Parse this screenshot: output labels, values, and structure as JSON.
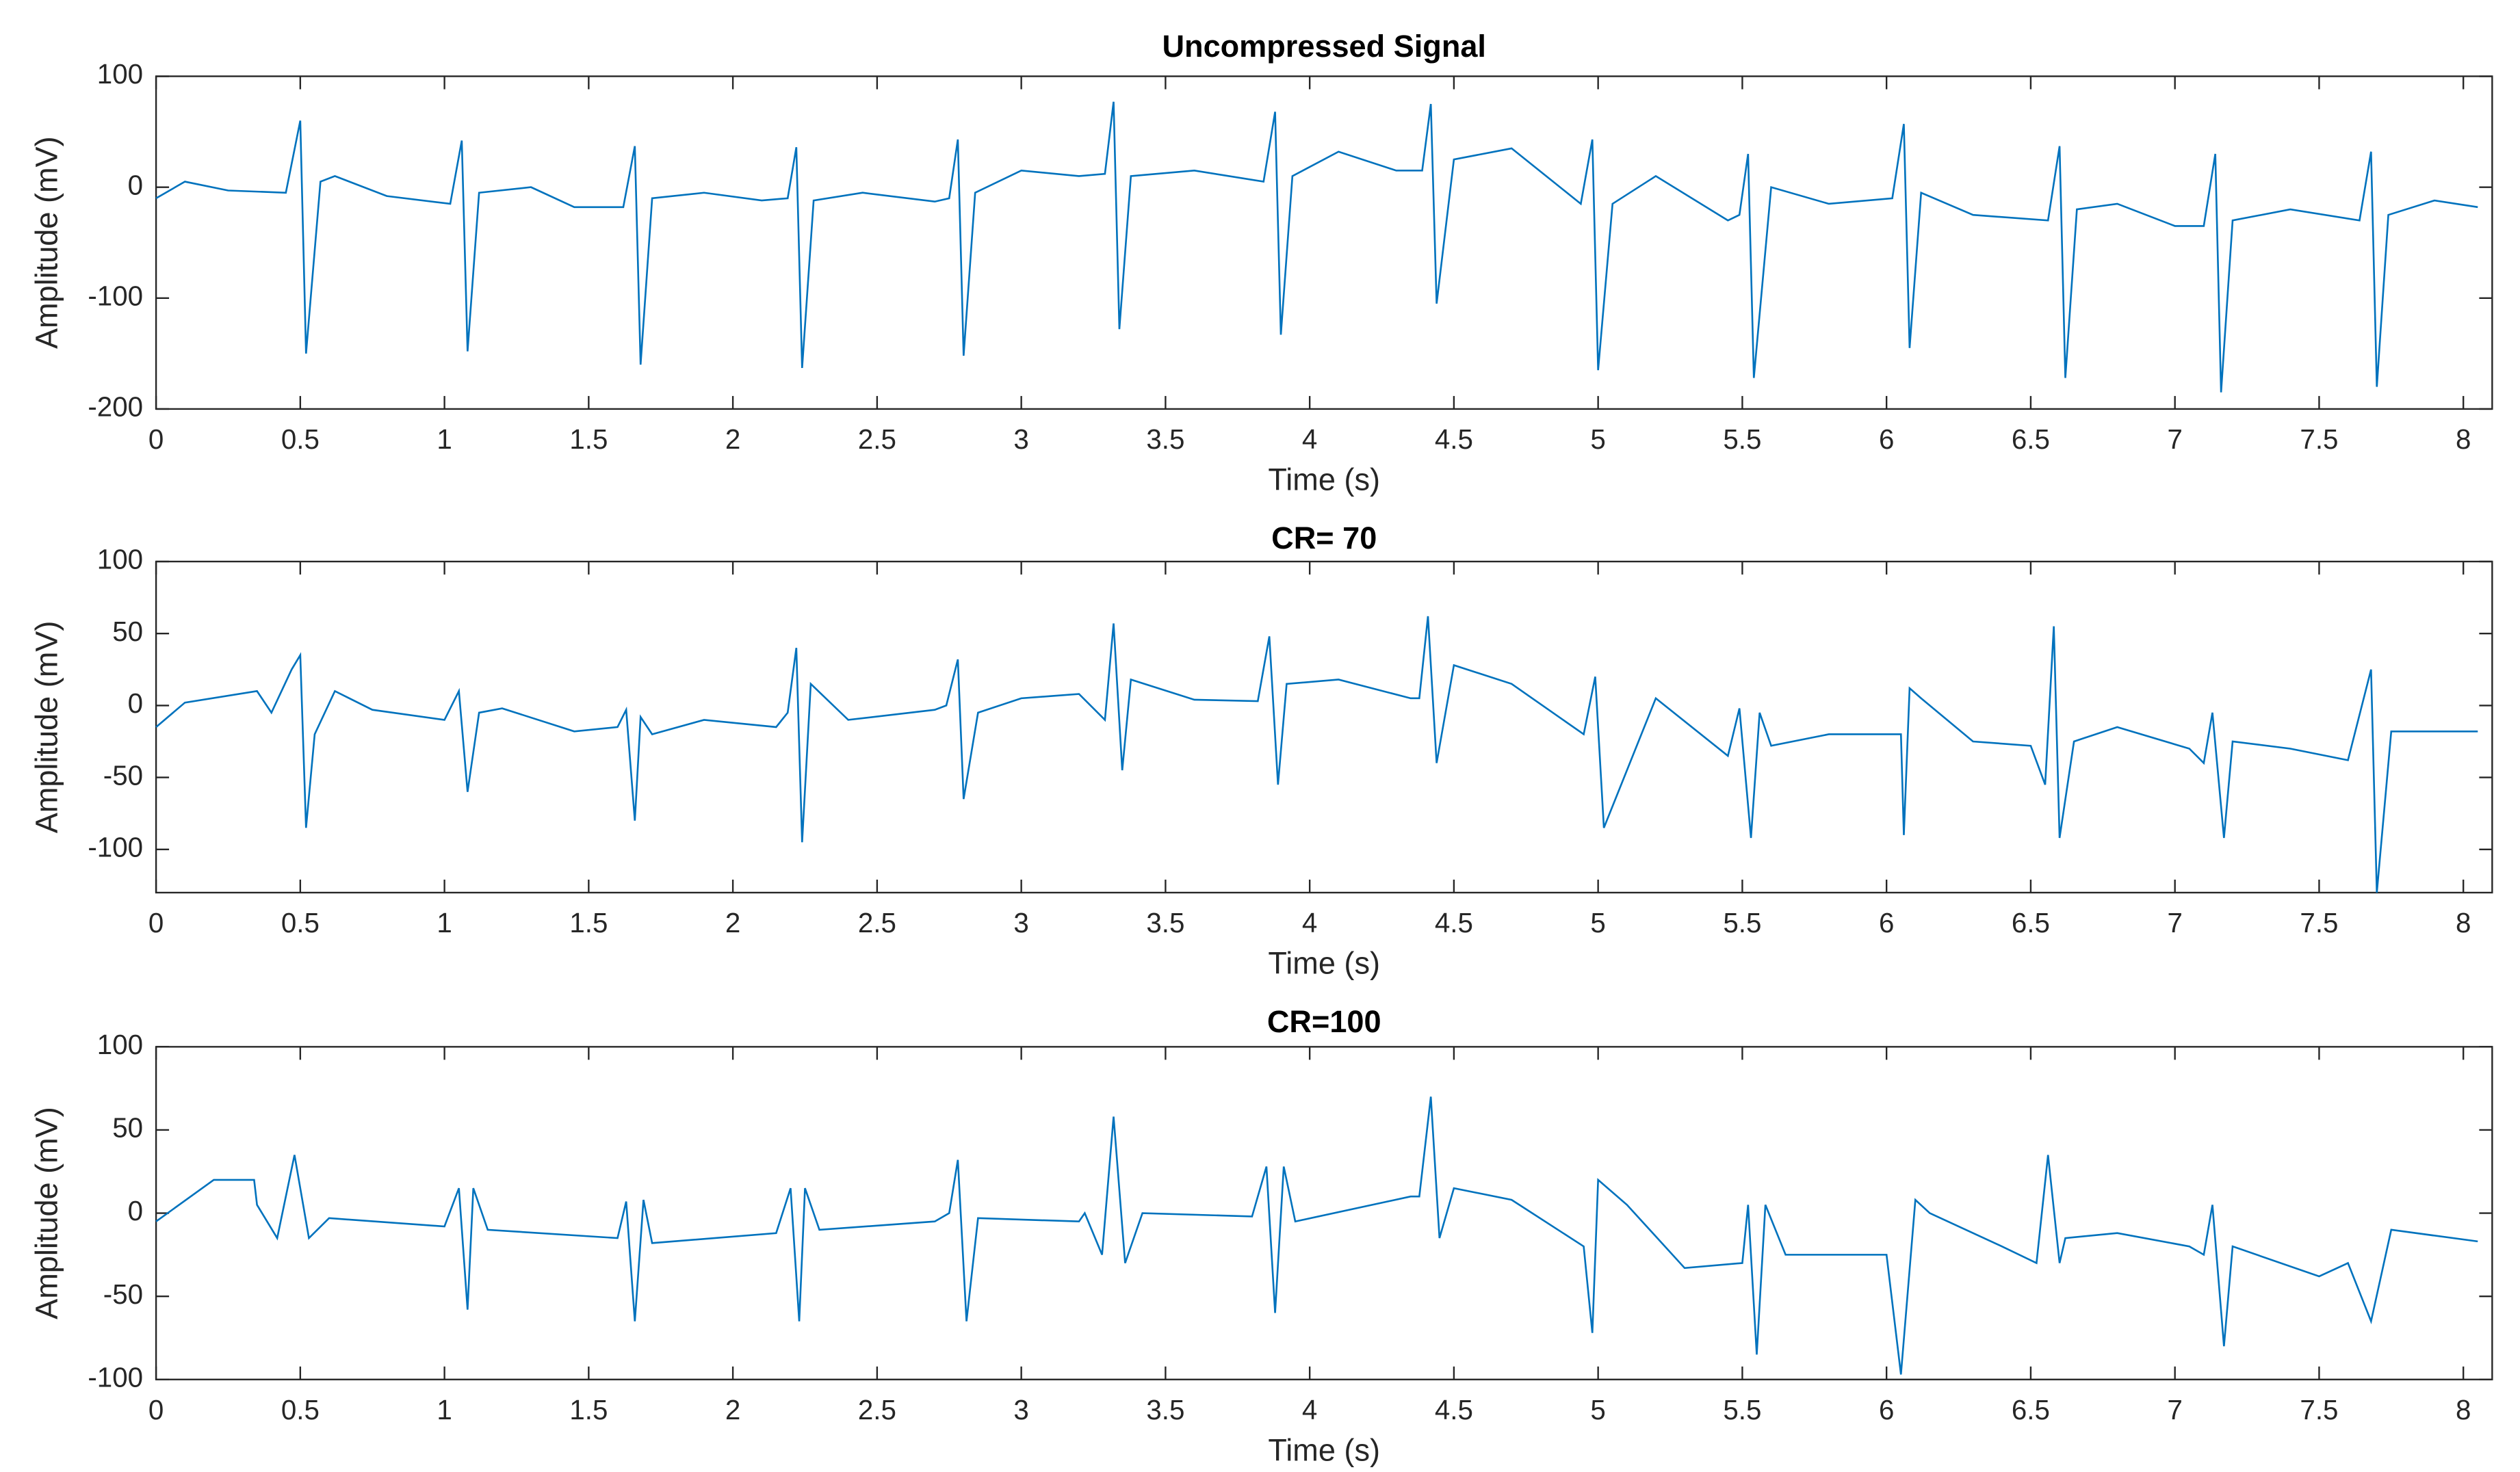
{
  "chart_data": [
    {
      "type": "line",
      "title": "Uncompressed Signal",
      "x_label": "Time (s)",
      "y_label": "Amplitude (mV)",
      "color": "#0072bd",
      "xlim": [
        0,
        8.1
      ],
      "xticks": [
        0,
        0.5,
        1,
        1.5,
        2,
        2.5,
        3,
        3.5,
        4,
        4.5,
        5,
        5.5,
        6,
        6.5,
        7,
        7.5,
        8
      ],
      "ylim": [
        -200,
        100
      ],
      "yticks": [
        -200,
        -100,
        0,
        100
      ],
      "x": [
        0,
        0.1,
        0.25,
        0.45,
        0.5,
        0.52,
        0.57,
        0.62,
        0.8,
        1.02,
        1.06,
        1.08,
        1.12,
        1.3,
        1.45,
        1.62,
        1.66,
        1.68,
        1.72,
        1.9,
        2.1,
        2.19,
        2.22,
        2.24,
        2.28,
        2.45,
        2.7,
        2.75,
        2.78,
        2.8,
        2.84,
        3.0,
        3.2,
        3.29,
        3.32,
        3.34,
        3.38,
        3.6,
        3.84,
        3.88,
        3.9,
        3.94,
        4.1,
        4.3,
        4.39,
        4.42,
        4.44,
        4.5,
        4.7,
        4.94,
        4.98,
        5.0,
        5.05,
        5.2,
        5.45,
        5.49,
        5.52,
        5.54,
        5.6,
        5.8,
        6.02,
        6.06,
        6.08,
        6.12,
        6.3,
        6.56,
        6.6,
        6.62,
        6.66,
        6.8,
        7.0,
        7.1,
        7.14,
        7.16,
        7.2,
        7.4,
        7.64,
        7.68,
        7.7,
        7.74,
        7.9,
        8.05
      ],
      "values": [
        -10,
        5,
        -3,
        -5,
        60,
        -150,
        5,
        10,
        -8,
        -15,
        42,
        -148,
        -5,
        0,
        -18,
        -18,
        37,
        -160,
        -10,
        -5,
        -12,
        -10,
        36,
        -163,
        -12,
        -5,
        -13,
        -10,
        43,
        -152,
        -5,
        15,
        10,
        12,
        77,
        -128,
        10,
        15,
        5,
        68,
        -133,
        10,
        32,
        15,
        15,
        75,
        -105,
        25,
        35,
        -15,
        43,
        -165,
        -15,
        10,
        -30,
        -25,
        30,
        -172,
        0,
        -15,
        -10,
        57,
        -145,
        -5,
        -25,
        -30,
        37,
        -172,
        -20,
        -15,
        -35,
        -35,
        30,
        -185,
        -30,
        -20,
        -30,
        32,
        -180,
        -25,
        -12,
        -18
      ]
    },
    {
      "type": "line",
      "title": "CR= 70",
      "x_label": "Time (s)",
      "y_label": "Amplitude (mV)",
      "color": "#0072bd",
      "xlim": [
        0,
        8.1
      ],
      "xticks": [
        0,
        0.5,
        1,
        1.5,
        2,
        2.5,
        3,
        3.5,
        4,
        4.5,
        5,
        5.5,
        6,
        6.5,
        7,
        7.5,
        8
      ],
      "ylim": [
        -130,
        100
      ],
      "yticks": [
        -100,
        -50,
        0,
        50,
        100
      ],
      "x": [
        0,
        0.1,
        0.35,
        0.4,
        0.47,
        0.5,
        0.52,
        0.55,
        0.62,
        0.75,
        1.0,
        1.05,
        1.08,
        1.12,
        1.2,
        1.45,
        1.6,
        1.63,
        1.66,
        1.68,
        1.72,
        1.9,
        2.15,
        2.19,
        2.22,
        2.24,
        2.27,
        2.4,
        2.7,
        2.74,
        2.78,
        2.8,
        2.85,
        3.0,
        3.2,
        3.29,
        3.32,
        3.35,
        3.38,
        3.6,
        3.82,
        3.86,
        3.89,
        3.92,
        4.1,
        4.35,
        4.38,
        4.41,
        4.44,
        4.5,
        4.7,
        4.95,
        4.99,
        5.02,
        5.2,
        5.45,
        5.49,
        5.53,
        5.56,
        5.6,
        5.8,
        6.05,
        6.06,
        6.08,
        6.12,
        6.3,
        6.5,
        6.55,
        6.58,
        6.6,
        6.65,
        6.8,
        7.05,
        7.1,
        7.13,
        7.17,
        7.2,
        7.4,
        7.6,
        7.68,
        7.7,
        7.75,
        8.05
      ],
      "values": [
        -15,
        2,
        10,
        -5,
        25,
        35,
        -85,
        -20,
        10,
        -3,
        -10,
        10,
        -60,
        -5,
        -2,
        -18,
        -15,
        -3,
        -80,
        -8,
        -20,
        -10,
        -15,
        -5,
        40,
        -95,
        15,
        -10,
        -3,
        0,
        32,
        -65,
        -5,
        5,
        8,
        -10,
        57,
        -45,
        18,
        4,
        3,
        48,
        -55,
        15,
        18,
        5,
        5,
        62,
        -40,
        28,
        15,
        -20,
        20,
        -85,
        5,
        -35,
        -2,
        -92,
        -5,
        -28,
        -20,
        -20,
        -90,
        12,
        5,
        -25,
        -28,
        -55,
        55,
        -92,
        -25,
        -15,
        -30,
        -40,
        -5,
        -92,
        -25,
        -30,
        -38,
        25,
        -130,
        -18,
        -18
      ]
    },
    {
      "type": "line",
      "title": "CR=100",
      "x_label": "Time (s)",
      "y_label": "Amplitude (mV)",
      "color": "#0072bd",
      "xlim": [
        0,
        8.1
      ],
      "xticks": [
        0,
        0.5,
        1,
        1.5,
        2,
        2.5,
        3,
        3.5,
        4,
        4.5,
        5,
        5.5,
        6,
        6.5,
        7,
        7.5,
        8
      ],
      "ylim": [
        -100,
        100
      ],
      "yticks": [
        -100,
        -50,
        0,
        50,
        100
      ],
      "x": [
        0,
        0.2,
        0.34,
        0.35,
        0.42,
        0.48,
        0.53,
        0.6,
        1.0,
        1.05,
        1.08,
        1.1,
        1.15,
        1.6,
        1.63,
        1.66,
        1.69,
        1.72,
        2.15,
        2.2,
        2.23,
        2.25,
        2.3,
        2.7,
        2.75,
        2.78,
        2.81,
        2.85,
        3.2,
        3.22,
        3.28,
        3.32,
        3.36,
        3.42,
        3.8,
        3.85,
        3.88,
        3.91,
        3.95,
        4.35,
        4.38,
        4.42,
        4.45,
        4.5,
        4.7,
        4.95,
        4.98,
        5.0,
        5.1,
        5.3,
        5.5,
        5.52,
        5.55,
        5.58,
        5.65,
        6.0,
        6.05,
        6.1,
        6.15,
        6.4,
        6.52,
        6.56,
        6.6,
        6.62,
        6.8,
        7.05,
        7.1,
        7.13,
        7.17,
        7.2,
        7.5,
        7.6,
        7.68,
        7.75,
        8.05
      ],
      "values": [
        -5,
        20,
        20,
        5,
        -15,
        35,
        -15,
        -3,
        -8,
        15,
        -58,
        15,
        -10,
        -15,
        7,
        -65,
        8,
        -18,
        -12,
        15,
        -65,
        15,
        -10,
        -5,
        0,
        32,
        -65,
        -3,
        -5,
        0,
        -25,
        58,
        -30,
        0,
        -2,
        28,
        -60,
        28,
        -5,
        10,
        10,
        70,
        -15,
        15,
        8,
        -20,
        -72,
        20,
        5,
        -33,
        -30,
        5,
        -85,
        5,
        -25,
        -25,
        -97,
        8,
        0,
        -20,
        -30,
        35,
        -30,
        -15,
        -12,
        -20,
        -25,
        5,
        -80,
        -20,
        -38,
        -30,
        -65,
        -10,
        -17
      ]
    }
  ]
}
